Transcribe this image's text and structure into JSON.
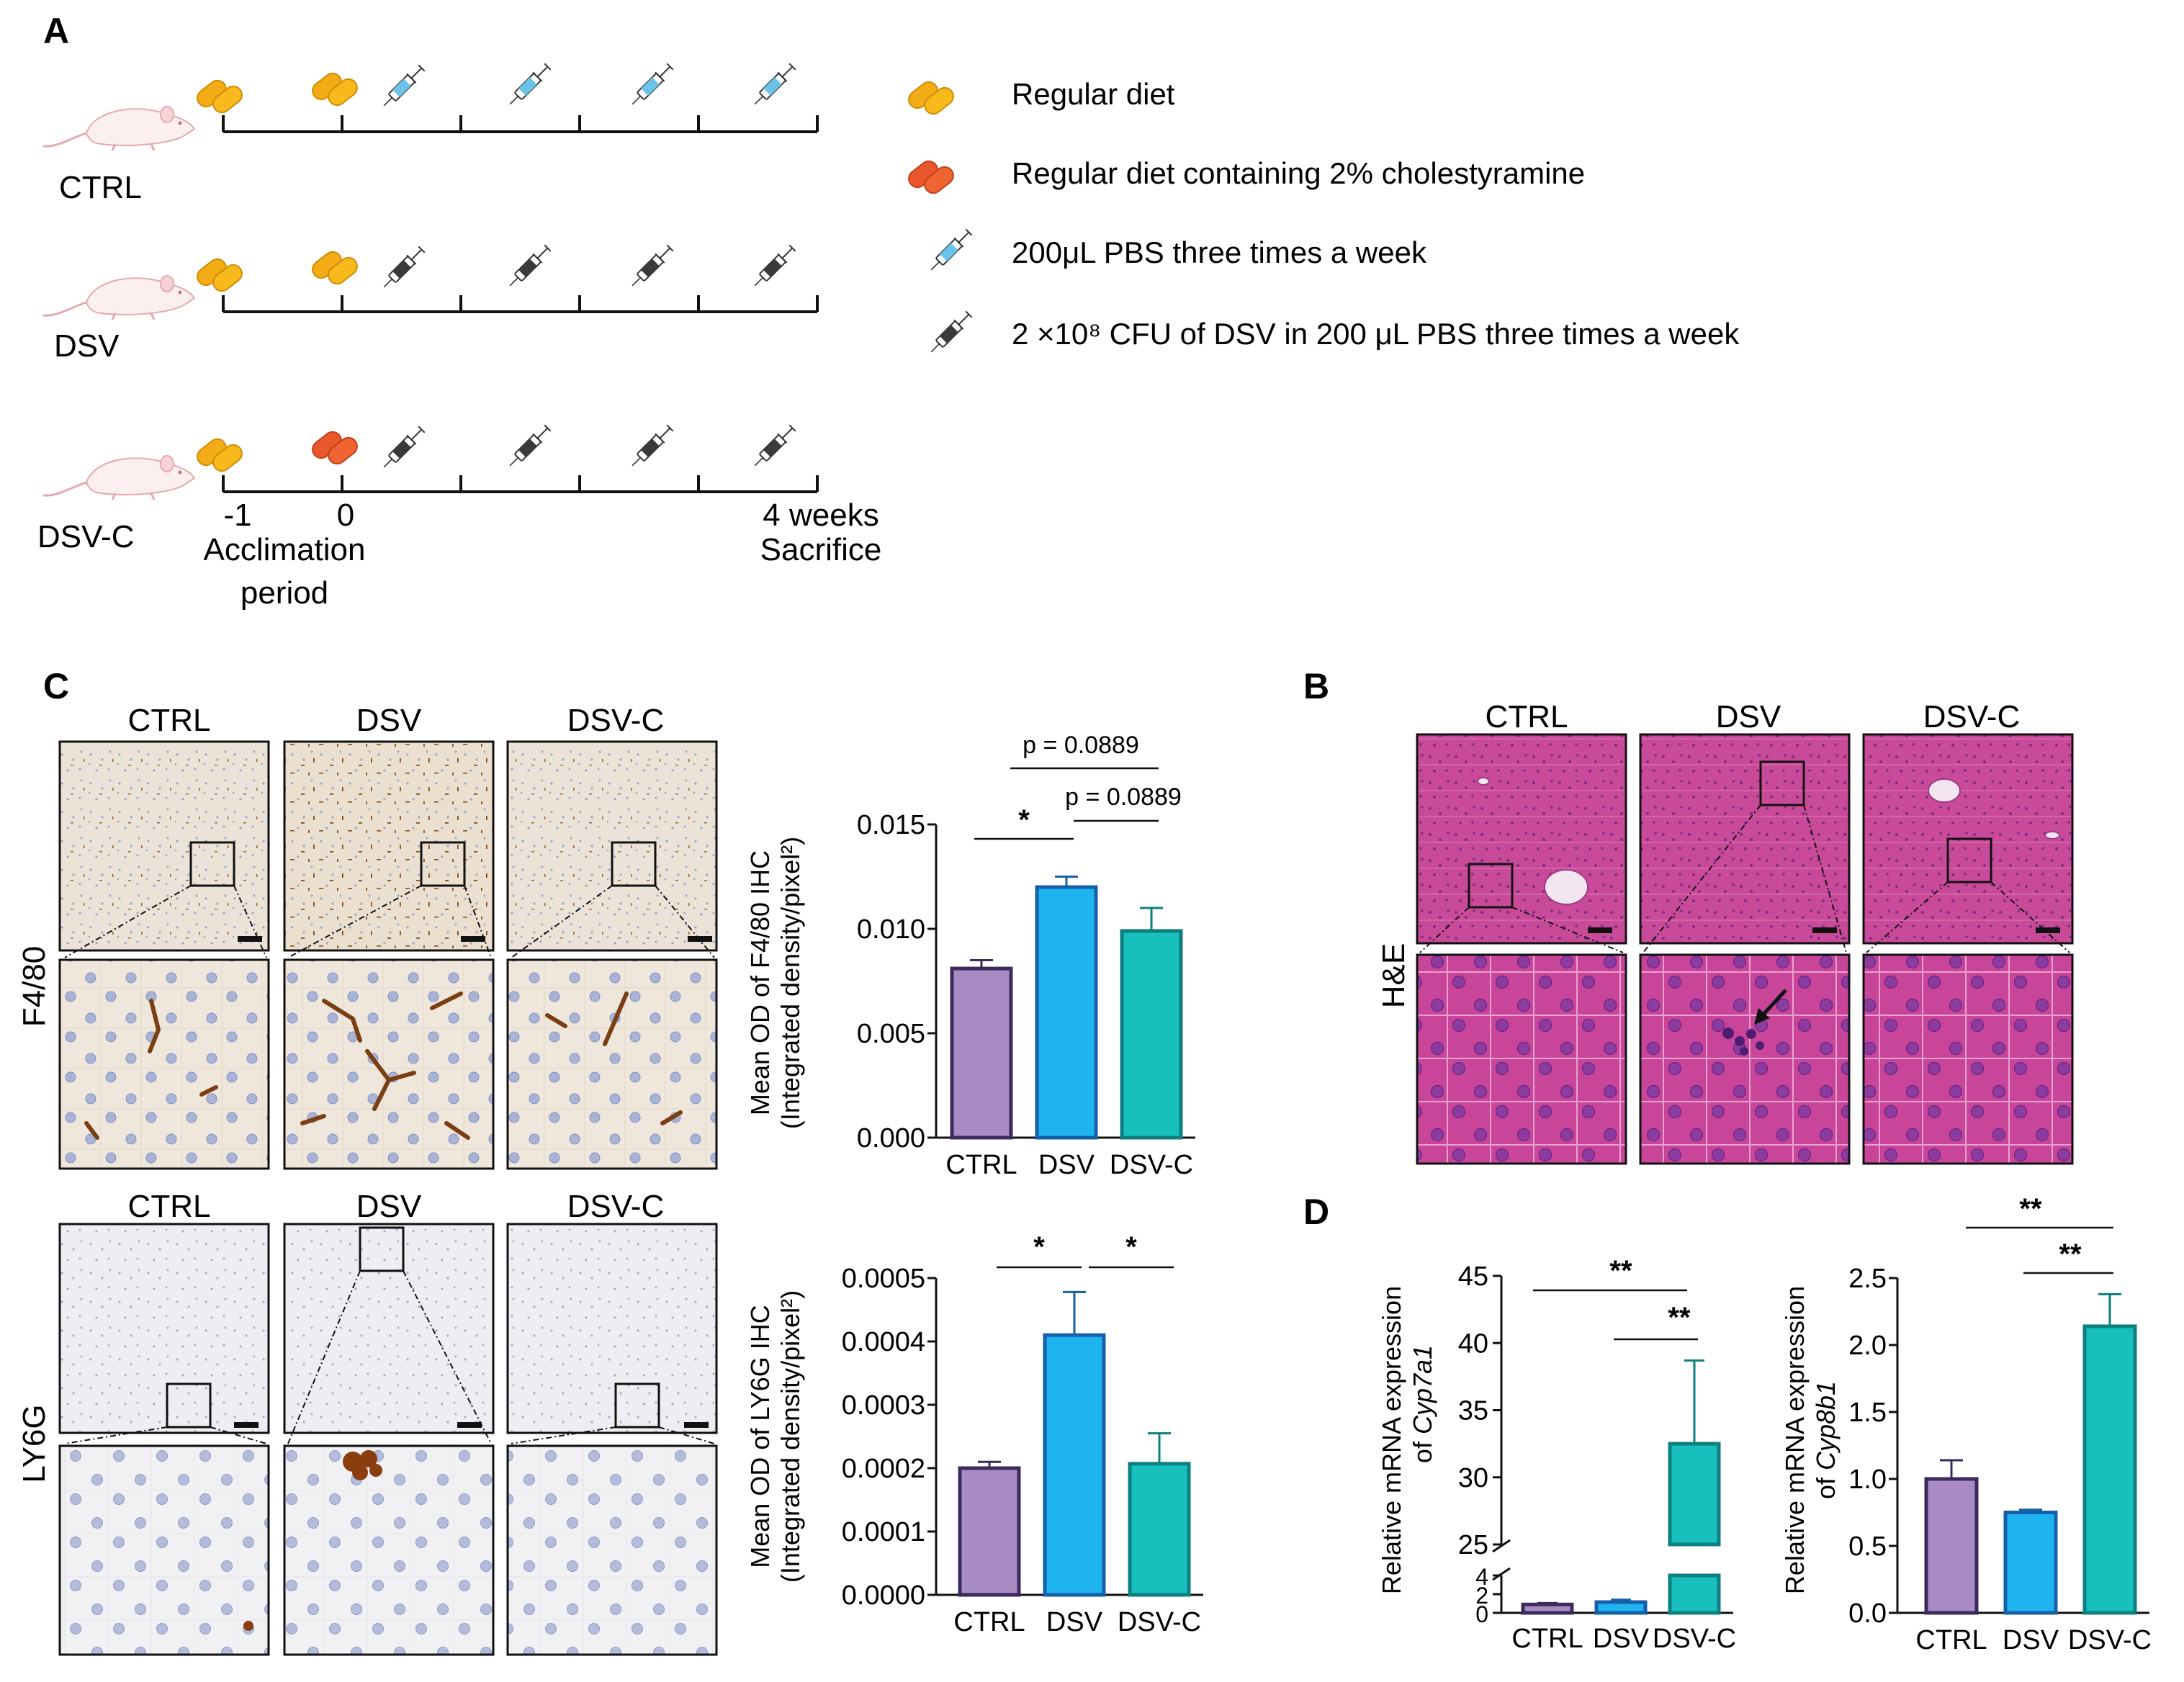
{
  "colors": {
    "ctrl": "#A98BC4",
    "ctrl_edge": "#3B2A5C",
    "dsv": "#1FB4F0",
    "dsv_edge": "#1560A8",
    "dsvc": "#17BFBD",
    "dsvc_edge": "#0E7F7F",
    "he_pink": "#C2378F",
    "ihc_bg": "#EDE4DA",
    "axis": "#111111"
  },
  "panelA": {
    "letter": "A",
    "groups": [
      "CTRL",
      "DSV",
      "DSV-C"
    ],
    "timeline": {
      "start_tick": "-1",
      "zero_tick": "0",
      "end_tick": "4 weeks",
      "start_caption_line1": "Acclimation",
      "start_caption_line2": "period",
      "end_caption": "Sacrifice"
    },
    "legend": [
      {
        "icon": "regular-diet-pill-icon",
        "label": "Regular diet"
      },
      {
        "icon": "cholestyramine-diet-pill-icon",
        "label": "Regular diet containing 2% cholestyramine"
      },
      {
        "icon": "pbs-syringe-icon",
        "label": "200μL PBS three times a week"
      },
      {
        "icon": "dsv-syringe-icon",
        "label": "2 ×10⁸ CFU of  DSV in 200 μL PBS three times a week"
      }
    ]
  },
  "panelB": {
    "letter": "B",
    "columns": [
      "CTRL",
      "DSV",
      "DSV-C"
    ],
    "row_label": "H&E"
  },
  "panelC": {
    "letter": "C",
    "columns": [
      "CTRL",
      "DSV",
      "DSV-C"
    ],
    "rows": [
      "F4/80",
      "LY6G"
    ]
  },
  "panelD": {
    "letter": "D"
  },
  "chart_data": [
    {
      "id": "f480",
      "type": "bar",
      "categories": [
        "CTRL",
        "DSV",
        "DSV-C"
      ],
      "values": [
        0.0081,
        0.012,
        0.0099
      ],
      "errors": [
        0.0004,
        0.0005,
        0.0011
      ],
      "ylabel_line1": "Mean OD of F4/80 IHC",
      "ylabel_line2": "(Integrated density/pixel²)",
      "ylim": [
        0,
        0.015
      ],
      "yticks": [
        "0.000",
        "0.005",
        "0.010",
        "0.015"
      ],
      "annotations": [
        {
          "from": "CTRL",
          "to": "DSV",
          "label": "*"
        },
        {
          "from": "DSV",
          "to": "DSV-C",
          "label": "p = 0.0889"
        },
        {
          "from": "CTRL",
          "to": "DSV-C",
          "label": "p = 0.0889"
        }
      ]
    },
    {
      "id": "ly6g",
      "type": "bar",
      "categories": [
        "CTRL",
        "DSV",
        "DSV-C"
      ],
      "values": [
        0.0002,
        0.00041,
        0.000207
      ],
      "errors": [
        1e-05,
        6.8e-05,
        4.8e-05
      ],
      "ylabel_line1": "Mean OD of LY6G IHC",
      "ylabel_line2": "(Integrated density/pixel²)",
      "ylim": [
        0,
        0.0005
      ],
      "yticks": [
        "0.0000",
        "0.0001",
        "0.0002",
        "0.0003",
        "0.0004",
        "0.0005"
      ],
      "annotations": [
        {
          "from": "CTRL",
          "to": "DSV",
          "label": "*"
        },
        {
          "from": "DSV",
          "to": "DSV-C",
          "label": "*"
        }
      ]
    },
    {
      "id": "cyp7a1",
      "type": "bar",
      "categories": [
        "CTRL",
        "DSV",
        "DSV-C"
      ],
      "values": [
        0.9,
        1.15,
        32.5
      ],
      "errors": [
        0.15,
        0.25,
        6.2
      ],
      "ylabel_line1": "Relative mRNA expression",
      "ylabel_line2_prefix": "of ",
      "ylabel_gene": "Cyp7a1",
      "broken_axis": true,
      "lower_ylim": [
        0,
        4
      ],
      "upper_ylim": [
        25,
        45
      ],
      "lower_yticks": [
        "0",
        "2",
        "4"
      ],
      "upper_yticks": [
        "25",
        "30",
        "35",
        "40",
        "45"
      ],
      "annotations": [
        {
          "from": "DSV",
          "to": "DSV-C",
          "label": "**"
        },
        {
          "from": "CTRL",
          "to": "DSV-C",
          "label": "**"
        }
      ]
    },
    {
      "id": "cyp8b1",
      "type": "bar",
      "categories": [
        "CTRL",
        "DSV",
        "DSV-C"
      ],
      "values": [
        1.0,
        0.75,
        2.14
      ],
      "errors": [
        0.14,
        0.02,
        0.24
      ],
      "ylabel_line1": "Relative mRNA expression",
      "ylabel_line2_prefix": "of ",
      "ylabel_gene": "Cyp8b1",
      "ylim": [
        0,
        2.5
      ],
      "yticks": [
        "0.0",
        "0.5",
        "1.0",
        "1.5",
        "2.0",
        "2.5"
      ],
      "annotations": [
        {
          "from": "DSV",
          "to": "DSV-C",
          "label": "**"
        },
        {
          "from": "CTRL",
          "to": "DSV-C",
          "label": "**"
        }
      ]
    }
  ]
}
